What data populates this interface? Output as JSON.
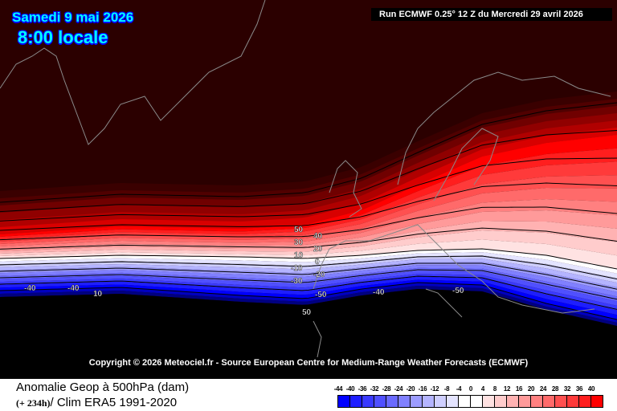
{
  "header": {
    "date": "Samedi 9 mai 2026",
    "time": "8:00 locale",
    "run": "Run ECMWF 0.25° 12 Z du Mercredi 29 avril 2026"
  },
  "copyright": "Copyright © 2026 Meteociel.fr - Source European Centre for Medium-Range Weather Forecasts (ECMWF)",
  "footer": {
    "title": "Anomalie Geop à 500hPa (dam)",
    "lead": "(+ 234h)",
    "clim": "/ Clim ERA5 1991-2020"
  },
  "colorbar": {
    "labels": [
      "-44",
      "-40",
      "-36",
      "-32",
      "-28",
      "-24",
      "-20",
      "-16",
      "-12",
      "-8",
      "-4",
      "0",
      "4",
      "8",
      "12",
      "16",
      "20",
      "24",
      "28",
      "32",
      "36",
      "40"
    ],
    "colors": [
      "#0000ff",
      "#1e1eff",
      "#3a3aff",
      "#5050ff",
      "#6a6aff",
      "#8080ff",
      "#9c9cff",
      "#b4b4ff",
      "#cfcfff",
      "#e4e4ff",
      "#ffffff",
      "#ffffff",
      "#ffe2e2",
      "#ffcccc",
      "#ffb2b2",
      "#ff9a9a",
      "#ff8080",
      "#ff6a6a",
      "#ff5050",
      "#ff3a3a",
      "#ff1e1e",
      "#ff0000"
    ]
  },
  "contour_labels": {
    "p50": "50",
    "p40": "40",
    "p30": "30",
    "p20": "20",
    "p10": "10",
    "z0": "0",
    "m10": "-10",
    "m20": "-20",
    "m30": "-30",
    "m50a": "-50",
    "m50b": "-50",
    "m40a": "-40",
    "m40b": "-40",
    "m40c": "-40",
    "l10": "10",
    "b50": "50"
  }
}
